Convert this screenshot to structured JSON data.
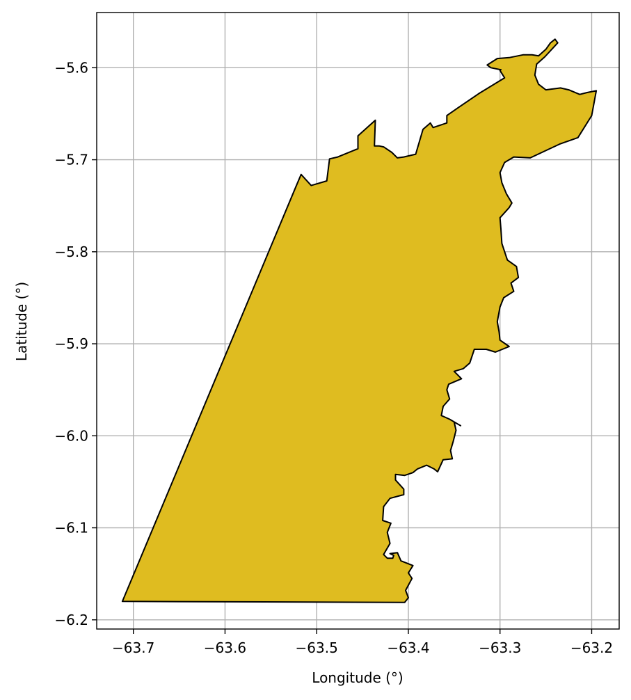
{
  "chart_data": {
    "type": "map",
    "title": "",
    "xlabel": "Longitude (°)",
    "ylabel": "Latitude (°)",
    "xlim": [
      -63.74,
      -63.17
    ],
    "ylim": [
      -6.21,
      -5.54
    ],
    "xticks": [
      -63.7,
      -63.6,
      -63.5,
      -63.4,
      -63.3,
      -63.2
    ],
    "xtick_labels": [
      "−63.7",
      "−63.6",
      "−63.5",
      "−63.4",
      "−63.3",
      "−63.2"
    ],
    "yticks": [
      -5.6,
      -5.7,
      -5.8,
      -5.9,
      -6.0,
      -6.1,
      -6.2
    ],
    "ytick_labels": [
      "−5.6",
      "−5.7",
      "−5.8",
      "−5.9",
      "−6.0",
      "−6.1",
      "−6.2"
    ],
    "grid": true,
    "fill_color": "#DFBC20",
    "edge_color": "#000000",
    "grid_color": "#b0b0b0",
    "region_polygon": [
      [
        -63.712,
        -6.18
      ],
      [
        -63.404,
        -6.181
      ],
      [
        -63.4,
        -6.176
      ],
      [
        -63.403,
        -6.168
      ],
      [
        -63.396,
        -6.155
      ],
      [
        -63.4,
        -6.149
      ],
      [
        -63.395,
        -6.141
      ],
      [
        -63.408,
        -6.136
      ],
      [
        -63.412,
        -6.127
      ],
      [
        -63.42,
        -6.128
      ],
      [
        -63.416,
        -6.13
      ],
      [
        -63.417,
        -6.133
      ],
      [
        -63.423,
        -6.133
      ],
      [
        -63.427,
        -6.129
      ],
      [
        -63.42,
        -6.117
      ],
      [
        -63.423,
        -6.105
      ],
      [
        -63.419,
        -6.095
      ],
      [
        -63.428,
        -6.092
      ],
      [
        -63.427,
        -6.077
      ],
      [
        -63.42,
        -6.068
      ],
      [
        -63.405,
        -6.064
      ],
      [
        -63.405,
        -6.058
      ],
      [
        -63.414,
        -6.048
      ],
      [
        -63.414,
        -6.042
      ],
      [
        -63.404,
        -6.043
      ],
      [
        -63.395,
        -6.04
      ],
      [
        -63.39,
        -6.036
      ],
      [
        -63.38,
        -6.032
      ],
      [
        -63.372,
        -6.036
      ],
      [
        -63.368,
        -6.039
      ],
      [
        -63.362,
        -6.026
      ],
      [
        -63.352,
        -6.025
      ],
      [
        -63.354,
        -6.016
      ],
      [
        -63.351,
        -6.006
      ],
      [
        -63.348,
        -5.994
      ],
      [
        -63.35,
        -5.985
      ],
      [
        -63.343,
        -5.989
      ],
      [
        -63.355,
        -5.982
      ],
      [
        -63.364,
        -5.978
      ],
      [
        -63.362,
        -5.968
      ],
      [
        -63.355,
        -5.96
      ],
      [
        -63.358,
        -5.95
      ],
      [
        -63.356,
        -5.944
      ],
      [
        -63.342,
        -5.938
      ],
      [
        -63.35,
        -5.93
      ],
      [
        -63.34,
        -5.927
      ],
      [
        -63.333,
        -5.921
      ],
      [
        -63.328,
        -5.906
      ],
      [
        -63.315,
        -5.906
      ],
      [
        -63.305,
        -5.909
      ],
      [
        -63.29,
        -5.903
      ],
      [
        -63.3,
        -5.896
      ],
      [
        -63.301,
        -5.887
      ],
      [
        -63.303,
        -5.876
      ],
      [
        -63.3,
        -5.86
      ],
      [
        -63.296,
        -5.85
      ],
      [
        -63.285,
        -5.843
      ],
      [
        -63.288,
        -5.834
      ],
      [
        -63.28,
        -5.828
      ],
      [
        -63.282,
        -5.816
      ],
      [
        -63.292,
        -5.809
      ],
      [
        -63.298,
        -5.791
      ],
      [
        -63.299,
        -5.775
      ],
      [
        -63.3,
        -5.763
      ],
      [
        -63.29,
        -5.752
      ],
      [
        -63.287,
        -5.747
      ],
      [
        -63.293,
        -5.737
      ],
      [
        -63.298,
        -5.725
      ],
      [
        -63.3,
        -5.714
      ],
      [
        -63.295,
        -5.703
      ],
      [
        -63.285,
        -5.697
      ],
      [
        -63.267,
        -5.698
      ],
      [
        -63.25,
        -5.69
      ],
      [
        -63.235,
        -5.683
      ],
      [
        -63.215,
        -5.676
      ],
      [
        -63.2,
        -5.652
      ],
      [
        -63.195,
        -5.625
      ],
      [
        -63.205,
        -5.627
      ],
      [
        -63.213,
        -5.629
      ],
      [
        -63.225,
        -5.624
      ],
      [
        -63.234,
        -5.622
      ],
      [
        -63.25,
        -5.624
      ],
      [
        -63.258,
        -5.618
      ],
      [
        -63.262,
        -5.608
      ],
      [
        -63.26,
        -5.596
      ],
      [
        -63.251,
        -5.588
      ],
      [
        -63.237,
        -5.573
      ],
      [
        -63.24,
        -5.569
      ],
      [
        -63.245,
        -5.573
      ],
      [
        -63.25,
        -5.58
      ],
      [
        -63.258,
        -5.587
      ],
      [
        -63.265,
        -5.586
      ],
      [
        -63.275,
        -5.586
      ],
      [
        -63.29,
        -5.589
      ],
      [
        -63.303,
        -5.59
      ],
      [
        -63.314,
        -5.597
      ],
      [
        -63.31,
        -5.6
      ],
      [
        -63.3,
        -5.602
      ],
      [
        -63.299,
        -5.602
      ],
      [
        -63.3,
        -5.603
      ],
      [
        -63.295,
        -5.611
      ],
      [
        -63.323,
        -5.628
      ],
      [
        -63.345,
        -5.643
      ],
      [
        -63.358,
        -5.652
      ],
      [
        -63.358,
        -5.66
      ],
      [
        -63.373,
        -5.665
      ],
      [
        -63.376,
        -5.66
      ],
      [
        -63.384,
        -5.667
      ],
      [
        -63.392,
        -5.694
      ],
      [
        -63.405,
        -5.697
      ],
      [
        -63.412,
        -5.698
      ],
      [
        -63.418,
        -5.692
      ],
      [
        -63.427,
        -5.686
      ],
      [
        -63.432,
        -5.685
      ],
      [
        -63.437,
        -5.685
      ],
      [
        -63.436,
        -5.657
      ],
      [
        -63.455,
        -5.674
      ],
      [
        -63.455,
        -5.688
      ],
      [
        -63.477,
        -5.697
      ],
      [
        -63.486,
        -5.699
      ],
      [
        -63.489,
        -5.723
      ],
      [
        -63.506,
        -5.728
      ],
      [
        -63.517,
        -5.716
      ],
      [
        -63.523,
        -5.73
      ],
      [
        -63.712,
        -6.18
      ]
    ]
  }
}
